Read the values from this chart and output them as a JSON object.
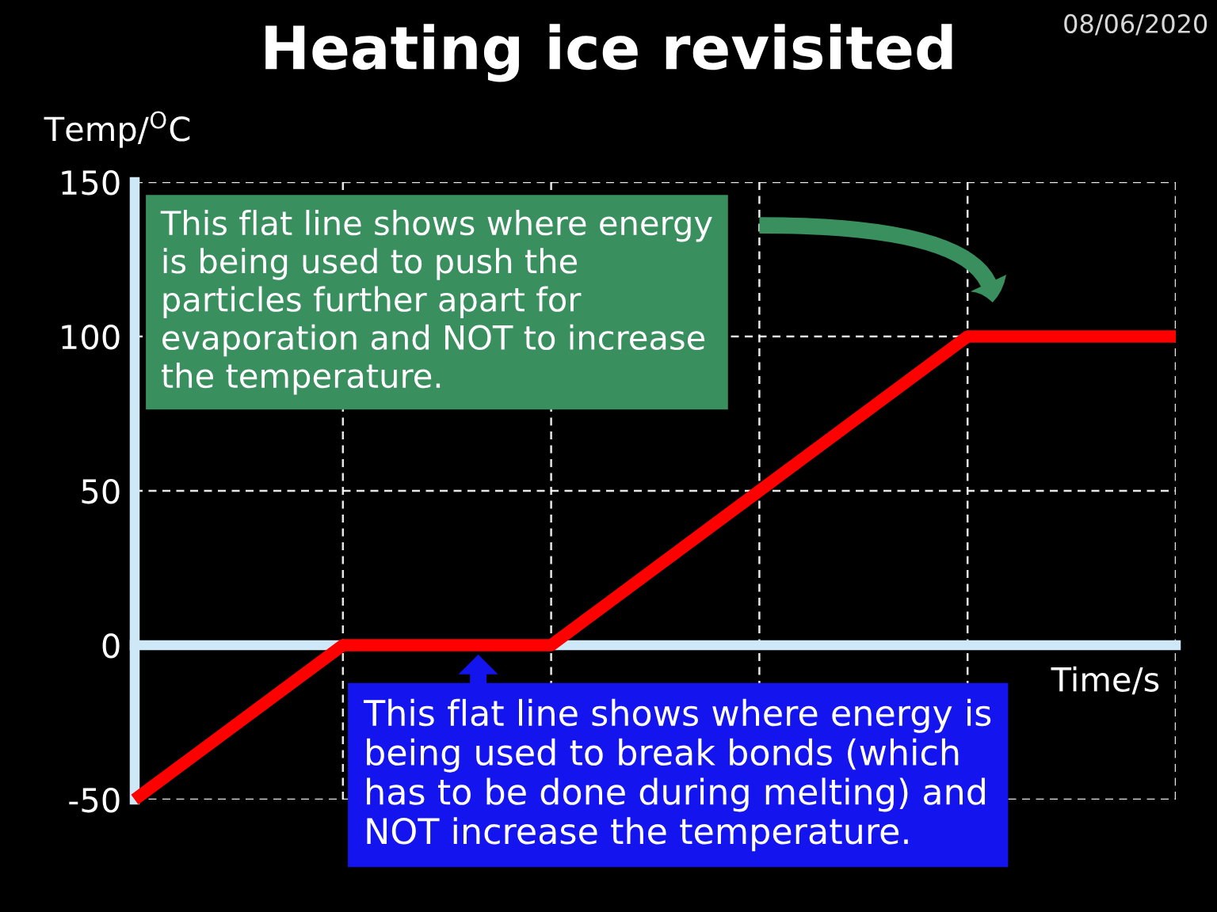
{
  "chart_data": {
    "type": "line",
    "title": "Heating ice revisited",
    "xlabel": "Time/s",
    "ylabel": "Temp/$^{O}$C",
    "categories": [
      null,
      null,
      null,
      null,
      null,
      null
    ],
    "series": [
      {
        "color": "#ff0000",
        "values": [
          -50,
          0,
          0,
          50,
          100,
          100
        ]
      }
    ],
    "ylim": [
      -50,
      150
    ],
    "yticks": [
      -50,
      0,
      50,
      100,
      150
    ],
    "grid": true,
    "line_style": "solid",
    "annotations": [
      "08/06/2020",
      "This flat line shows where energy\nis being used to push the\nparticles further apart for\nevaporation and NOT to increase\nthe temperature.",
      "This flat line shows where energy is\nbeing used to break bonds (which\nhas to be done during melting) and\nNOT increase the temperature."
    ]
  }
}
